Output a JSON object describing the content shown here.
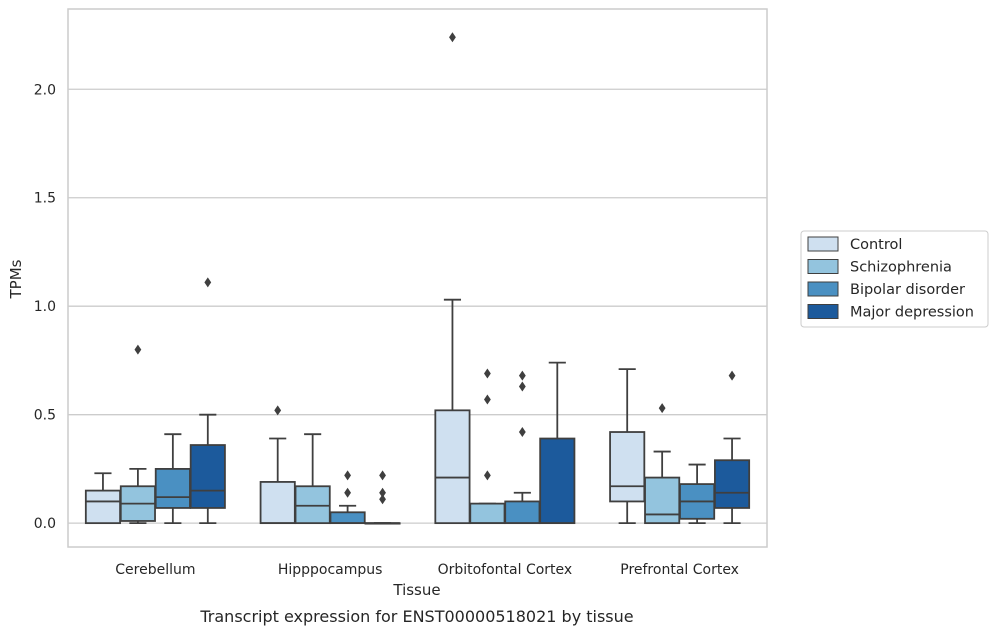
{
  "chart_data": {
    "type": "boxplot",
    "caption": "Transcript expression for ENST00000518021 by tissue",
    "xlabel": "Tissue",
    "ylabel": "TPMs",
    "ylim": [
      -0.11,
      2.37
    ],
    "yticks": [
      0.0,
      0.5,
      1.0,
      1.5,
      2.0
    ],
    "ytick_labels": [
      "0.0",
      "0.5",
      "1.0",
      "1.5",
      "2.0"
    ],
    "grid": "horizontal",
    "legend_position": "right",
    "categories": [
      "Cerebellum",
      "Hipppocampus",
      "Orbitofontal Cortex",
      "Prefrontal Cortex"
    ],
    "series": [
      {
        "name": "Control",
        "color": "#cfe0f0",
        "boxes": [
          {
            "whislo": 0.0,
            "q1": 0.0,
            "med": 0.1,
            "q3": 0.15,
            "whishi": 0.23,
            "fliers": []
          },
          {
            "whislo": 0.0,
            "q1": 0.0,
            "med": 0.0,
            "q3": 0.19,
            "whishi": 0.39,
            "fliers": [
              0.52
            ]
          },
          {
            "whislo": 0.0,
            "q1": 0.0,
            "med": 0.21,
            "q3": 0.52,
            "whishi": 1.03,
            "fliers": [
              2.24
            ]
          },
          {
            "whislo": 0.0,
            "q1": 0.1,
            "med": 0.17,
            "q3": 0.42,
            "whishi": 0.71,
            "fliers": []
          }
        ]
      },
      {
        "name": "Schizophrenia",
        "color": "#93c4de",
        "boxes": [
          {
            "whislo": 0.0,
            "q1": 0.01,
            "med": 0.09,
            "q3": 0.17,
            "whishi": 0.25,
            "fliers": [
              0.8
            ]
          },
          {
            "whislo": 0.0,
            "q1": 0.0,
            "med": 0.08,
            "q3": 0.17,
            "whishi": 0.41,
            "fliers": []
          },
          {
            "whislo": 0.0,
            "q1": 0.0,
            "med": 0.0,
            "q3": 0.09,
            "whishi": 0.09,
            "fliers": [
              0.22,
              0.57,
              0.69
            ]
          },
          {
            "whislo": 0.0,
            "q1": 0.0,
            "med": 0.04,
            "q3": 0.21,
            "whishi": 0.33,
            "fliers": [
              0.53
            ]
          }
        ]
      },
      {
        "name": "Bipolar disorder",
        "color": "#4a90c2",
        "boxes": [
          {
            "whislo": 0.0,
            "q1": 0.07,
            "med": 0.12,
            "q3": 0.25,
            "whishi": 0.41,
            "fliers": []
          },
          {
            "whislo": 0.0,
            "q1": 0.0,
            "med": 0.0,
            "q3": 0.05,
            "whishi": 0.08,
            "fliers": [
              0.14,
              0.22
            ]
          },
          {
            "whislo": 0.0,
            "q1": 0.0,
            "med": 0.0,
            "q3": 0.1,
            "whishi": 0.14,
            "fliers": [
              0.42,
              0.63,
              0.68
            ]
          },
          {
            "whislo": 0.0,
            "q1": 0.02,
            "med": 0.1,
            "q3": 0.18,
            "whishi": 0.27,
            "fliers": []
          }
        ]
      },
      {
        "name": "Major depression",
        "color": "#1c5a9c",
        "boxes": [
          {
            "whislo": 0.0,
            "q1": 0.07,
            "med": 0.15,
            "q3": 0.36,
            "whishi": 0.5,
            "fliers": [
              1.11
            ]
          },
          {
            "whislo": 0.0,
            "q1": 0.0,
            "med": 0.0,
            "q3": 0.0,
            "whishi": 0.0,
            "fliers": [
              0.11,
              0.14,
              0.22
            ]
          },
          {
            "whislo": 0.0,
            "q1": 0.0,
            "med": 0.0,
            "q3": 0.39,
            "whishi": 0.74,
            "fliers": []
          },
          {
            "whislo": 0.0,
            "q1": 0.07,
            "med": 0.14,
            "q3": 0.29,
            "whishi": 0.39,
            "fliers": [
              0.68
            ]
          }
        ]
      }
    ]
  }
}
